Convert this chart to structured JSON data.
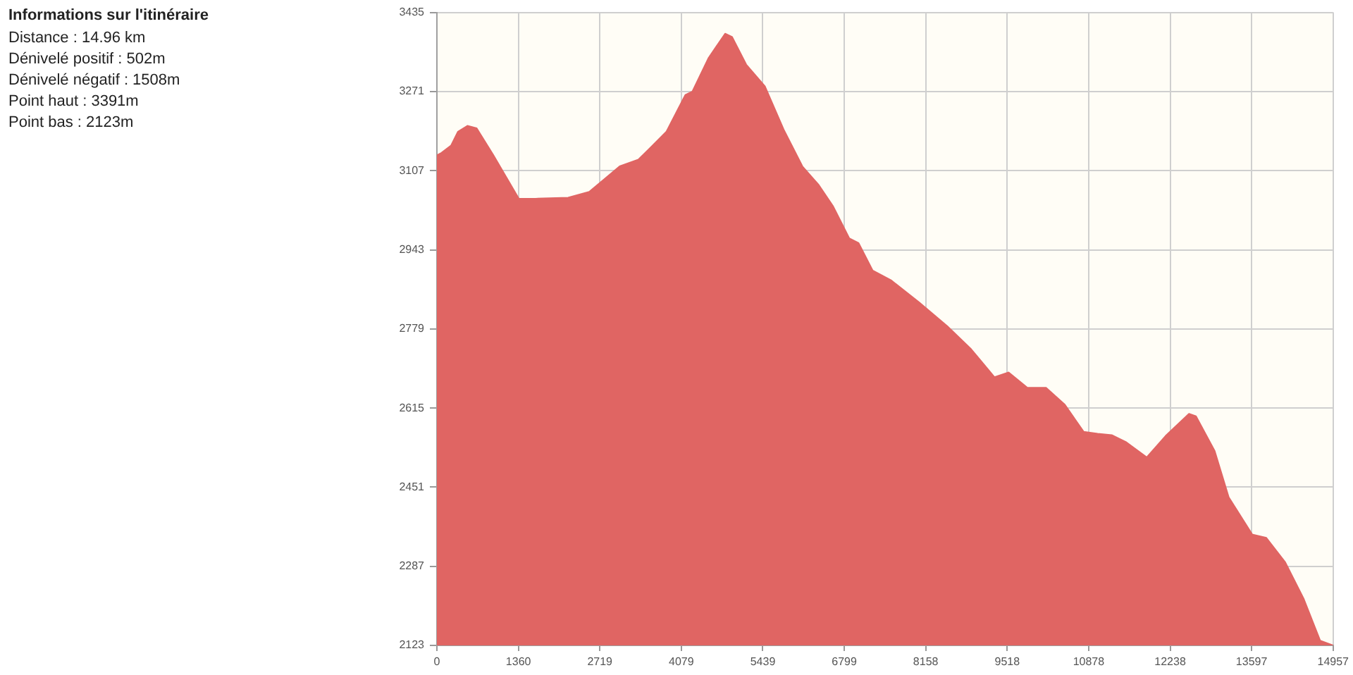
{
  "chart_data": {
    "type": "area",
    "title": "Informations sur l'itinéraire",
    "annotations": [
      "Distance : 14.96 km",
      "Dénivelé positif : 502m",
      "Dénivelé négatif : 1508m",
      "Point haut : 3391m",
      "Point bas : 2123m"
    ],
    "x": [
      0,
      77,
      235,
      352,
      509,
      664,
      938,
      1368,
      1642,
      2189,
      2541,
      3050,
      3362,
      3559,
      3831,
      4146,
      4263,
      4535,
      4810,
      4927,
      5162,
      5474,
      5788,
      6100,
      6375,
      6609,
      6881,
      7038,
      7273,
      7578,
      8047,
      8516,
      8916,
      9307,
      9542,
      9855,
      10166,
      10480,
      10793,
      11027,
      11262,
      11496,
      11848,
      12160,
      12552,
      12669,
      12981,
      13216,
      13608,
      13843,
      14155,
      14469,
      14741,
      14957
    ],
    "values": [
      3139,
      3144,
      3159,
      3188,
      3200,
      3195,
      3140,
      3049,
      3049,
      3051,
      3063,
      3116,
      3130,
      3154,
      3188,
      3264,
      3271,
      3341,
      3391,
      3384,
      3327,
      3282,
      3192,
      3116,
      3077,
      3034,
      2967,
      2957,
      2900,
      2880,
      2834,
      2785,
      2737,
      2679,
      2689,
      2657,
      2657,
      2622,
      2566,
      2562,
      2559,
      2545,
      2513,
      2557,
      2603,
      2598,
      2526,
      2430,
      2353,
      2346,
      2296,
      2219,
      2133,
      2123
    ],
    "color": "#e06563",
    "xlim": [
      0,
      14957
    ],
    "xticks": [
      0,
      1360,
      2719,
      4079,
      5439,
      6799,
      8158,
      9518,
      10878,
      12238,
      13597,
      14957
    ],
    "ylim": [
      2123,
      3435
    ],
    "yticks": [
      2123,
      2287,
      2451,
      2615,
      2779,
      2943,
      3107,
      3271,
      3435
    ],
    "grid": true
  }
}
